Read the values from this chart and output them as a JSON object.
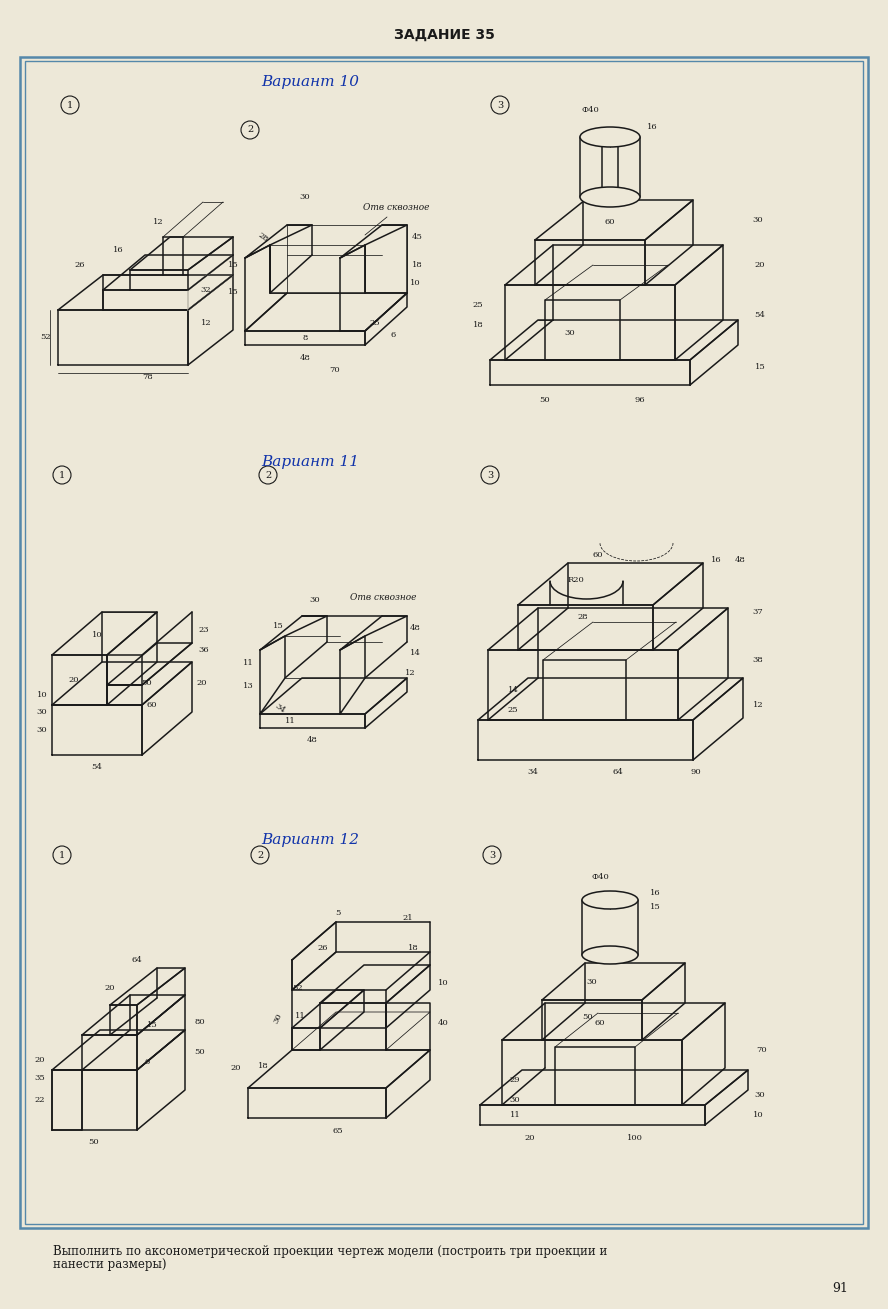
{
  "title": "ЗАДАНИЕ 35",
  "page_number": "91",
  "background_color": "#ede8d8",
  "border_color": "#5588aa",
  "text_color": "#1a1a1a",
  "footer_text": "Выполнить по аксонометрической проекции чертеж модели (построить три проекции и\nнанести размеры)",
  "v10_label": "Вариант 10",
  "v11_label": "Вариант 11",
  "v12_label": "Вариант 12",
  "label_color": "#1133aa"
}
